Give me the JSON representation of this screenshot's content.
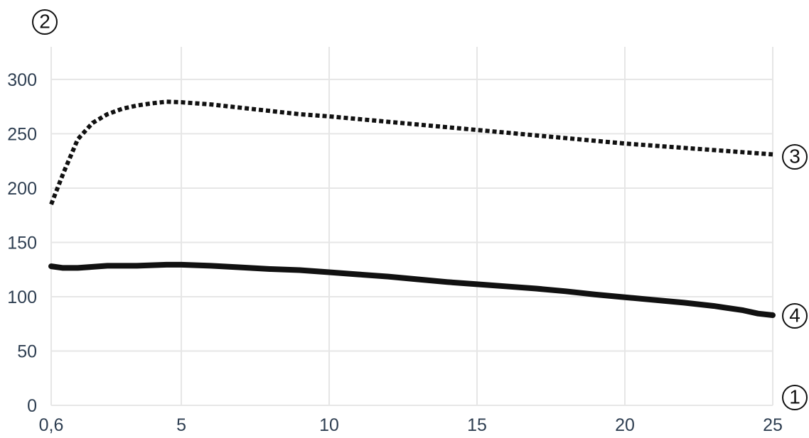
{
  "chart_data": {
    "type": "line",
    "x_ticks": [
      "0,6",
      "5",
      "10",
      "15",
      "20",
      "25"
    ],
    "x_tick_values": [
      0.6,
      5,
      10,
      15,
      20,
      25
    ],
    "y_ticks": [
      "0",
      "50",
      "100",
      "150",
      "200",
      "250",
      "300"
    ],
    "y_tick_values": [
      0,
      50,
      100,
      150,
      200,
      250,
      300
    ],
    "xlim": [
      0.6,
      25
    ],
    "ylim": [
      0,
      330
    ],
    "grid": true,
    "series": [
      {
        "style": "dotted",
        "color": "#111111",
        "x": [
          0.6,
          1,
          1.5,
          2,
          2.5,
          3,
          3.5,
          4,
          4.5,
          5,
          6,
          7,
          8,
          9,
          10,
          11,
          12,
          13,
          14,
          15,
          16,
          17,
          18,
          19,
          20,
          21,
          22,
          23,
          24,
          25
        ],
        "y": [
          185,
          213,
          245,
          260,
          268,
          273,
          276,
          278,
          279.5,
          279,
          277,
          274,
          271,
          268,
          266,
          263.5,
          261,
          258.5,
          256,
          253.5,
          251,
          248.5,
          246,
          243.5,
          241,
          239,
          237,
          235,
          233,
          231
        ]
      },
      {
        "style": "solid",
        "color": "#111111",
        "x": [
          0.6,
          1,
          1.5,
          2,
          2.5,
          3,
          3.5,
          4,
          4.5,
          5,
          6,
          7,
          8,
          9,
          10,
          11,
          12,
          13,
          14,
          15,
          16,
          17,
          18,
          19,
          20,
          21,
          22,
          23,
          24,
          24.5,
          25
        ],
        "y": [
          128,
          126.5,
          126.5,
          127.5,
          128.5,
          128.5,
          128.5,
          129,
          129.5,
          129.5,
          128.5,
          127,
          125.5,
          124.5,
          122.5,
          120.5,
          118.5,
          116,
          113.5,
          111.5,
          109.5,
          107.5,
          105,
          102,
          99.5,
          97,
          94.5,
          91.5,
          87.5,
          84.5,
          83
        ]
      }
    ]
  },
  "markers": {
    "y_axis": "2",
    "x_axis": "1",
    "dotted_series": "3",
    "solid_series": "4"
  }
}
